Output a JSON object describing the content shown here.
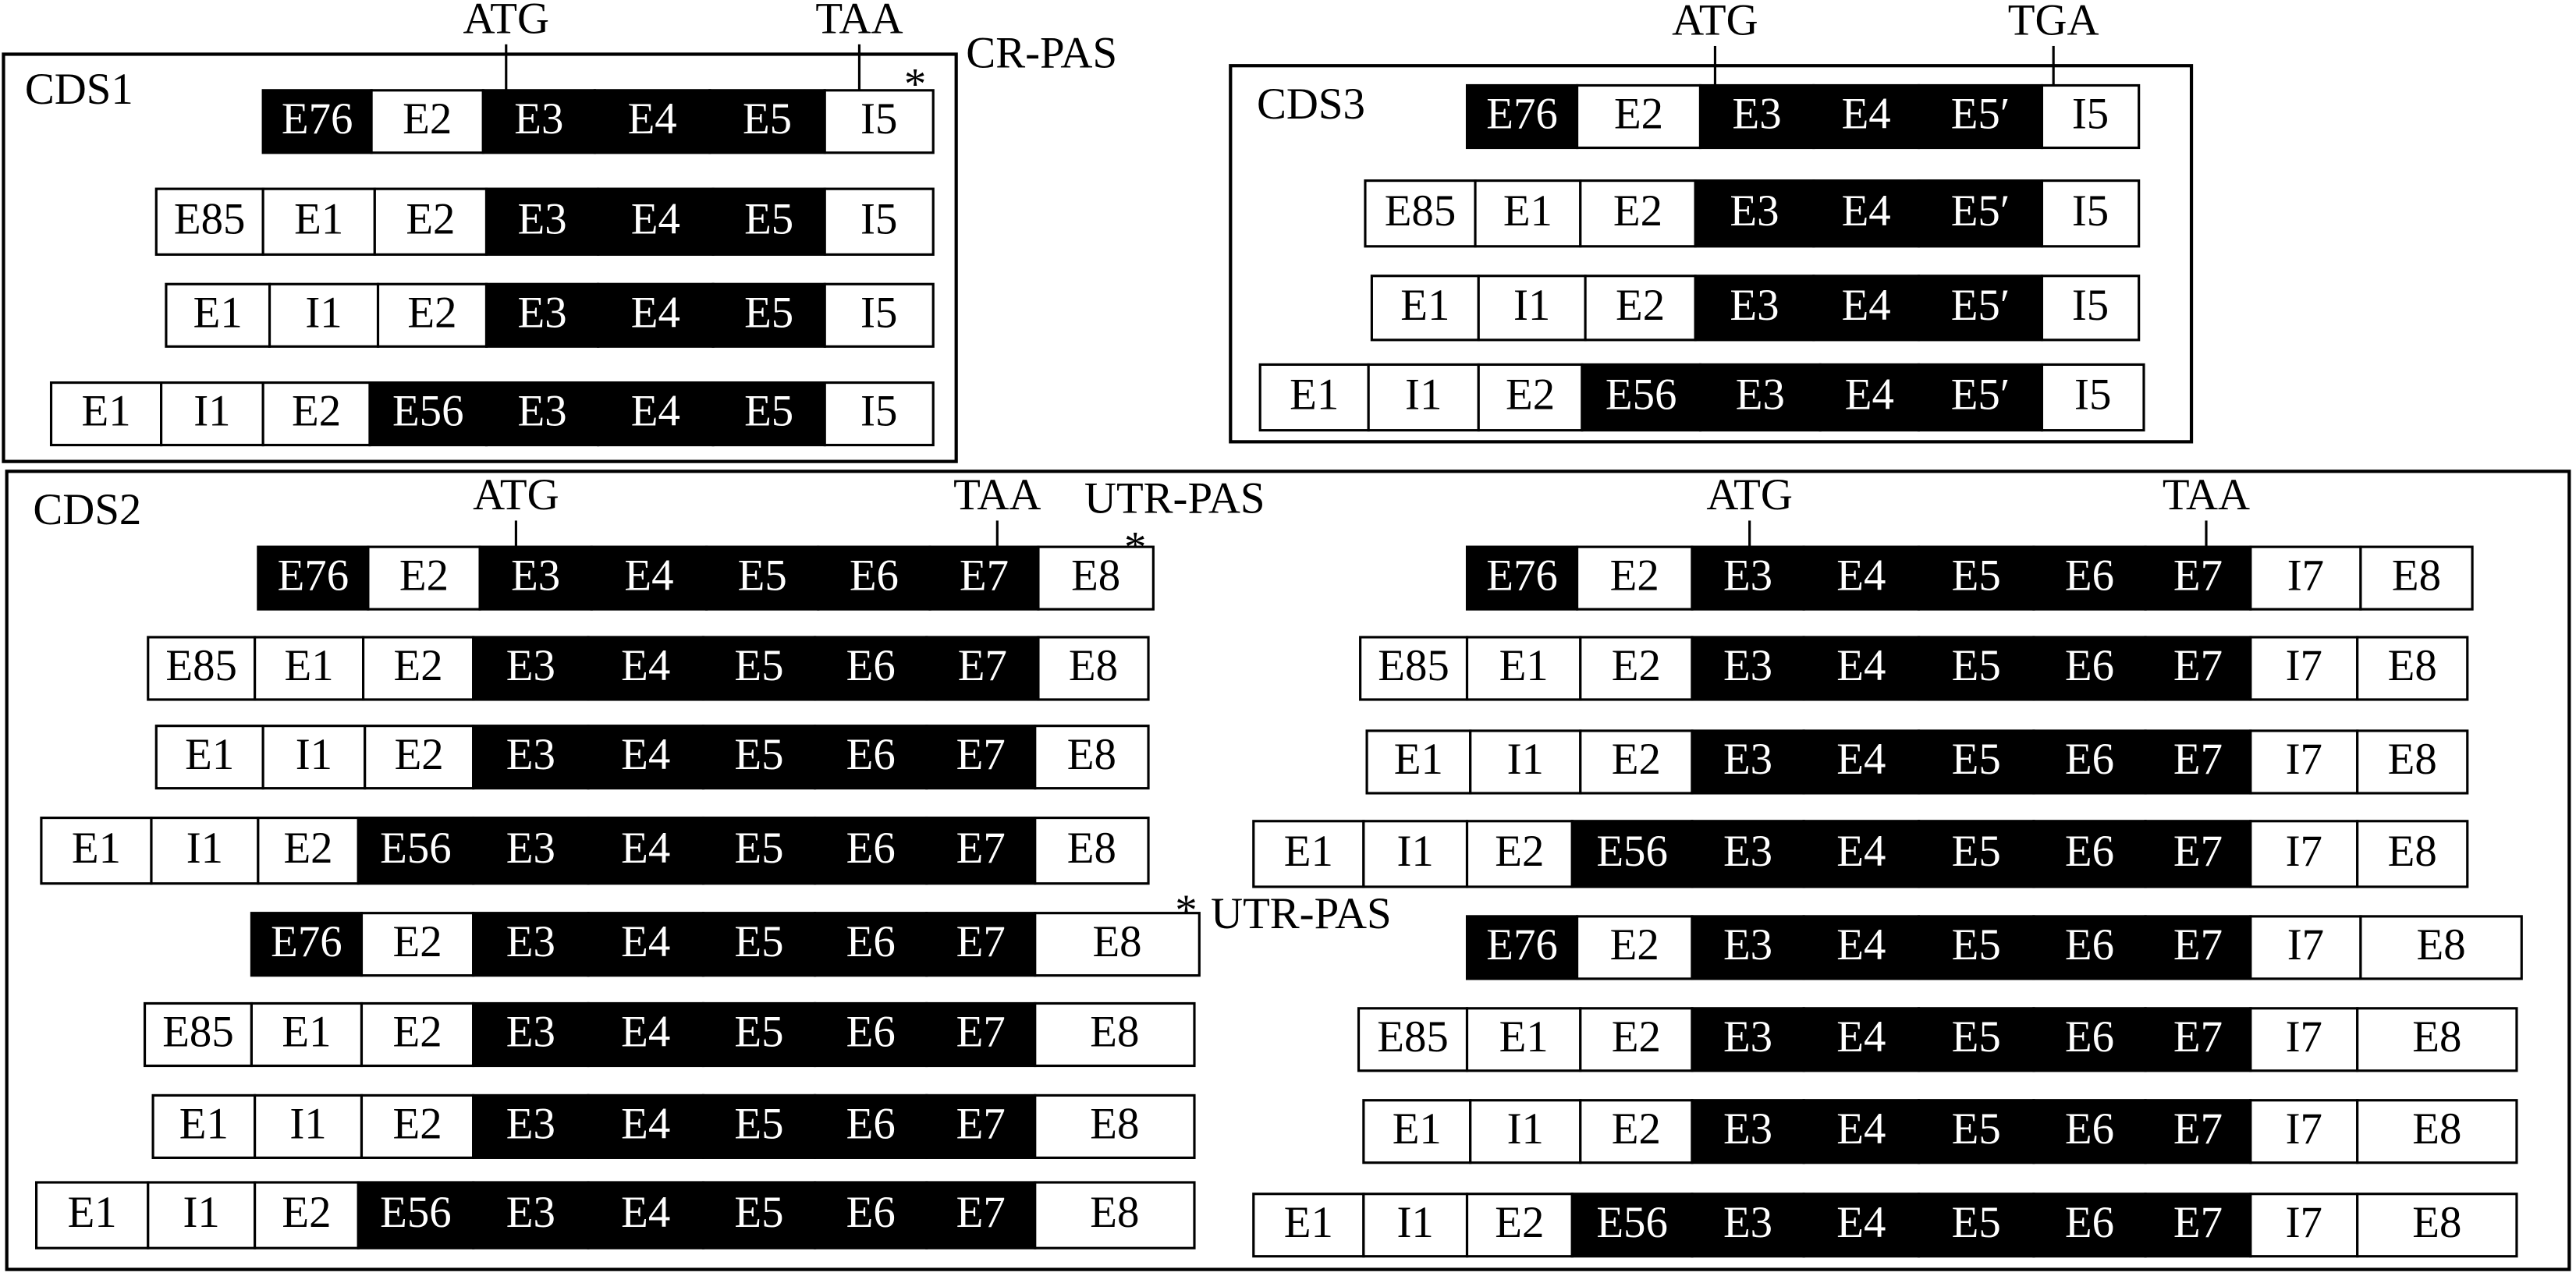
{
  "panel_labels": [
    "CDS1",
    "CDS3",
    "CDS2"
  ],
  "blocks": [
    {
      "start_codon": "ATG",
      "stop_codon": "TAA",
      "rows": [
        [
          "E76",
          "E2",
          "E3",
          "E4",
          "E5",
          "I5"
        ],
        [
          "E85",
          "E1",
          "E2",
          "E3",
          "E4",
          "E5",
          "I5"
        ],
        [
          "E1",
          "I1",
          "E2",
          "E3",
          "E4",
          "E5",
          "I5"
        ],
        [
          "E1",
          "I1",
          "E2",
          "E56",
          "E3",
          "E4",
          "E5",
          "I5"
        ]
      ]
    },
    {
      "start_codon": "ATG",
      "stop_codon": "TGA",
      "rows": [
        [
          "E76",
          "E2",
          "E3",
          "E4",
          "E5′",
          "I5"
        ],
        [
          "E85",
          "E1",
          "E2",
          "E3",
          "E4",
          "E5′",
          "I5"
        ],
        [
          "E1",
          "I1",
          "E2",
          "E3",
          "E4",
          "E5′",
          "I5"
        ],
        [
          "E1",
          "I1",
          "E2",
          "E56",
          "E3",
          "E4",
          "E5′",
          "I5"
        ]
      ]
    },
    {
      "start_codon": "ATG",
      "stop_codon": "TAA",
      "rows": [
        [
          "E76",
          "E2",
          "E3",
          "E4",
          "E5",
          "E6",
          "E7",
          "E8"
        ],
        [
          "E85",
          "E1",
          "E2",
          "E3",
          "E4",
          "E5",
          "E6",
          "E7",
          "E8"
        ],
        [
          "E1",
          "I1",
          "E2",
          "E3",
          "E4",
          "E5",
          "E6",
          "E7",
          "E8"
        ],
        [
          "E1",
          "I1",
          "E2",
          "E56",
          "E3",
          "E4",
          "E5",
          "E6",
          "E7",
          "E8"
        ],
        [
          "E76",
          "E2",
          "E3",
          "E4",
          "E5",
          "E6",
          "E7",
          "E8"
        ],
        [
          "E85",
          "E1",
          "E2",
          "E3",
          "E4",
          "E5",
          "E6",
          "E7",
          "E8"
        ],
        [
          "E1",
          "I1",
          "E2",
          "E3",
          "E4",
          "E5",
          "E6",
          "E7",
          "E8"
        ],
        [
          "E1",
          "I1",
          "E2",
          "E56",
          "E3",
          "E4",
          "E5",
          "E6",
          "E7",
          "E8"
        ]
      ]
    },
    {
      "start_codon": "ATG",
      "stop_codon": "TAA",
      "rows": [
        [
          "E76",
          "E2",
          "E3",
          "E4",
          "E5",
          "E6",
          "E7",
          "I7",
          "E8"
        ],
        [
          "E85",
          "E1",
          "E2",
          "E3",
          "E4",
          "E5",
          "E6",
          "E7",
          "I7",
          "E8"
        ],
        [
          "E1",
          "I1",
          "E2",
          "E3",
          "E4",
          "E5",
          "E6",
          "E7",
          "I7",
          "E8"
        ],
        [
          "E1",
          "I1",
          "E2",
          "E56",
          "E3",
          "E4",
          "E5",
          "E6",
          "E7",
          "I7",
          "E8"
        ],
        [
          "E76",
          "E2",
          "E3",
          "E4",
          "E5",
          "E6",
          "E7",
          "I7",
          "E8"
        ],
        [
          "E85",
          "E1",
          "E2",
          "E3",
          "E4",
          "E5",
          "E6",
          "E7",
          "I7",
          "E8"
        ],
        [
          "E1",
          "I1",
          "E2",
          "E3",
          "E4",
          "E5",
          "E6",
          "E7",
          "I7",
          "E8"
        ],
        [
          "E1",
          "I1",
          "E2",
          "E56",
          "E3",
          "E4",
          "E5",
          "E6",
          "E7",
          "I7",
          "E8"
        ]
      ]
    }
  ],
  "annotations": [
    "CR-PAS",
    "*",
    "UTR-PAS",
    "*",
    "UTR-PAS",
    "*"
  ]
}
